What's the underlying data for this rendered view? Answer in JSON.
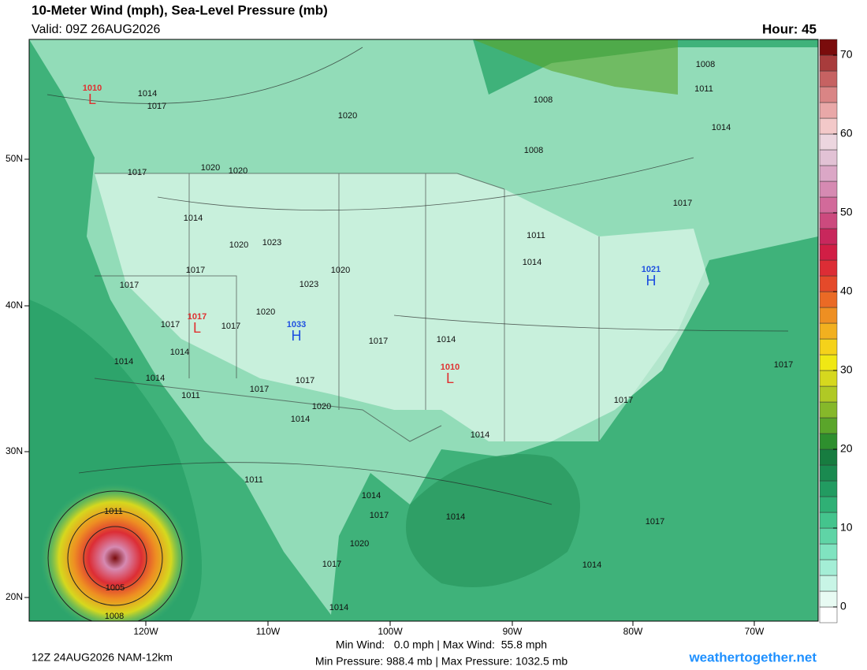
{
  "header": {
    "title": "10-Meter Wind (mph), Sea-Level Pressure (mb)",
    "valid": "Valid: 09Z 26AUG2026",
    "hour": "Hour: 45"
  },
  "map": {
    "lon_labels": [
      "120W",
      "110W",
      "100W",
      "90W",
      "80W",
      "70W"
    ],
    "lat_labels": [
      "50N",
      "40N",
      "30N",
      "20N"
    ],
    "isobar_labels": [
      "1014",
      "1017",
      "1020",
      "1008",
      "1008",
      "1008",
      "1011",
      "1014",
      "1017",
      "1020",
      "1020",
      "1014",
      "1020",
      "1023",
      "1017",
      "1020",
      "1023",
      "1017",
      "1017",
      "1017",
      "1020",
      "1017",
      "1014",
      "1014",
      "1014",
      "1014",
      "1011",
      "1017",
      "1017",
      "1020",
      "1014",
      "1011",
      "1014",
      "1017",
      "1017",
      "1017",
      "1014",
      "1011",
      "1014",
      "1017",
      "1014",
      "1020",
      "1017",
      "1014",
      "1014",
      "1011",
      "1005",
      "1008",
      "1017"
    ],
    "pressure_centers": [
      {
        "type": "L",
        "value": "1010"
      },
      {
        "type": "L",
        "value": "1017"
      },
      {
        "type": "H",
        "value": "1033"
      },
      {
        "type": "L",
        "value": "1010"
      },
      {
        "type": "H",
        "value": "1021"
      }
    ]
  },
  "colorbar": {
    "lim": [
      -2,
      72
    ],
    "ticks": [
      0,
      10,
      20,
      30,
      40,
      50,
      60,
      70
    ],
    "bands": [
      "#ffffff",
      "#e8fbf3",
      "#c8f5e6",
      "#a4eed6",
      "#80e3c0",
      "#5fd4a6",
      "#44c48d",
      "#2fb075",
      "#229b61",
      "#1a8a50",
      "#177c40",
      "#2e8f2e",
      "#5aa52a",
      "#86b82a",
      "#b0c925",
      "#d6d81e",
      "#f0e814",
      "#f5d21a",
      "#f2b01f",
      "#ee8f22",
      "#ea6a25",
      "#e44a2a",
      "#dc2d35",
      "#d11e45",
      "#c8275c",
      "#cc4a7e",
      "#d26a9a",
      "#d68ab2",
      "#dba7c6",
      "#e2c2d5",
      "#ecd6df",
      "#f3c9c9",
      "#e9a8a8",
      "#d98585",
      "#c66262",
      "#a83c3c",
      "#7a0c0c"
    ]
  },
  "footer": {
    "run": "12Z 24AUG2026 NAM-12km",
    "stats_wind": "Min Wind:   0.0 mph | Max Wind:  55.8 mph",
    "stats_pressure": "Min Pressure: 988.4 mb | Max Pressure: 1032.5 mb",
    "site": "weathertogether.net"
  }
}
